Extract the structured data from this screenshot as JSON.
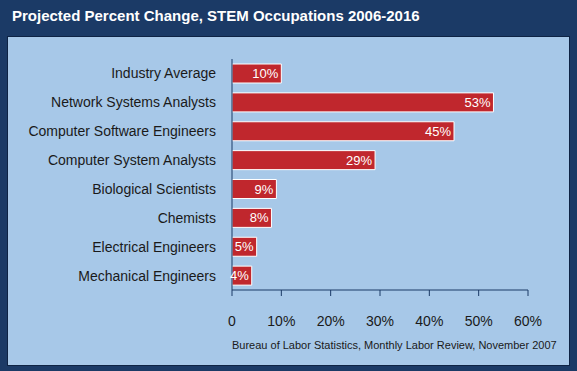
{
  "chart_data": {
    "type": "bar",
    "orientation": "horizontal",
    "title": "Projected Percent Change, STEM Occupations 2006-2016",
    "annotation": "Bureau of Labor Statistics, Monthly Labor Review, November 2007",
    "categories": [
      "Industry Average",
      "Network Systems Analysts",
      "Computer Software Engineers",
      "Computer System Analysts",
      "Biological Scientists",
      "Chemists",
      "Electrical Engineers",
      "Mechanical Engineers"
    ],
    "values": [
      10,
      53,
      45,
      29,
      9,
      8,
      5,
      4
    ],
    "value_labels": [
      "10%",
      "53%",
      "45%",
      "29%",
      "9%",
      "8%",
      "5%",
      "4%"
    ],
    "color": "#c0272d",
    "xlim": [
      0,
      60
    ],
    "xticks": [
      0,
      {
        "value": 10,
        "label": "10%"
      },
      {
        "value": 20,
        "label": "20%"
      },
      {
        "value": 30,
        "label": "30%"
      },
      {
        "value": 40,
        "label": "40%"
      },
      {
        "value": 50,
        "label": "50%"
      },
      {
        "value": 60,
        "label": "60%"
      }
    ],
    "data_labels": true,
    "grid": false
  }
}
